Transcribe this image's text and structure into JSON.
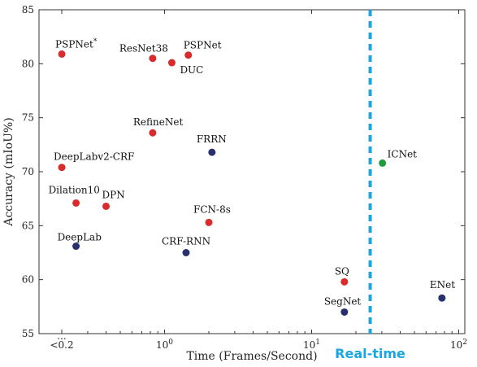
{
  "chart_data": {
    "type": "scatter",
    "xlabel": "Time (Frames/Second)",
    "ylabel": "Accuracy (mIoU%)",
    "x_scale": "log",
    "xlim": [
      0.14,
      110
    ],
    "ylim": [
      55,
      85
    ],
    "x_ticks": [
      {
        "value": 0.2,
        "label": "<0.2"
      },
      {
        "value": 1,
        "label": "10",
        "sup": "0"
      },
      {
        "value": 10,
        "label": "10",
        "sup": "1"
      },
      {
        "value": 100,
        "label": "10",
        "sup": "2"
      }
    ],
    "x_break_mark": "...",
    "y_ticks": [
      55,
      60,
      65,
      70,
      75,
      80,
      85
    ],
    "grid": false,
    "realtime": {
      "x": 25,
      "label": "Real-time",
      "color": "#1aa7e0"
    },
    "colors": {
      "red": "#d92b2b",
      "navy": "#27306e",
      "green": "#1f9a3c"
    },
    "points": [
      {
        "label": "PSPNet",
        "sup": "*",
        "x": 0.2,
        "y": 80.9,
        "color": "red"
      },
      {
        "label": "ResNet38",
        "x": 0.83,
        "y": 80.5,
        "color": "red"
      },
      {
        "label": "PSPNet",
        "x": 1.45,
        "y": 80.8,
        "color": "red"
      },
      {
        "label": "DUC",
        "x": 1.12,
        "y": 80.1,
        "color": "red"
      },
      {
        "label": "RefineNet",
        "x": 0.83,
        "y": 73.6,
        "color": "red"
      },
      {
        "label": "FRRN",
        "x": 2.1,
        "y": 71.8,
        "color": "navy"
      },
      {
        "label": "DeepLabv2-CRF",
        "x": 0.2,
        "y": 70.4,
        "color": "red"
      },
      {
        "label": "ICNet",
        "x": 30.3,
        "y": 70.8,
        "color": "green"
      },
      {
        "label": "Dilation10",
        "x": 0.25,
        "y": 67.1,
        "color": "red"
      },
      {
        "label": "DPN",
        "x": 0.4,
        "y": 66.8,
        "color": "red"
      },
      {
        "label": "FCN-8s",
        "x": 2.0,
        "y": 65.3,
        "color": "red"
      },
      {
        "label": "DeepLab",
        "x": 0.25,
        "y": 63.1,
        "color": "navy"
      },
      {
        "label": "CRF-RNN",
        "x": 1.4,
        "y": 62.5,
        "color": "navy"
      },
      {
        "label": "SQ",
        "x": 16.7,
        "y": 59.8,
        "color": "red"
      },
      {
        "label": "SegNet",
        "x": 16.7,
        "y": 57.0,
        "color": "navy"
      },
      {
        "label": "ENet",
        "x": 76.9,
        "y": 58.3,
        "color": "navy"
      }
    ]
  }
}
